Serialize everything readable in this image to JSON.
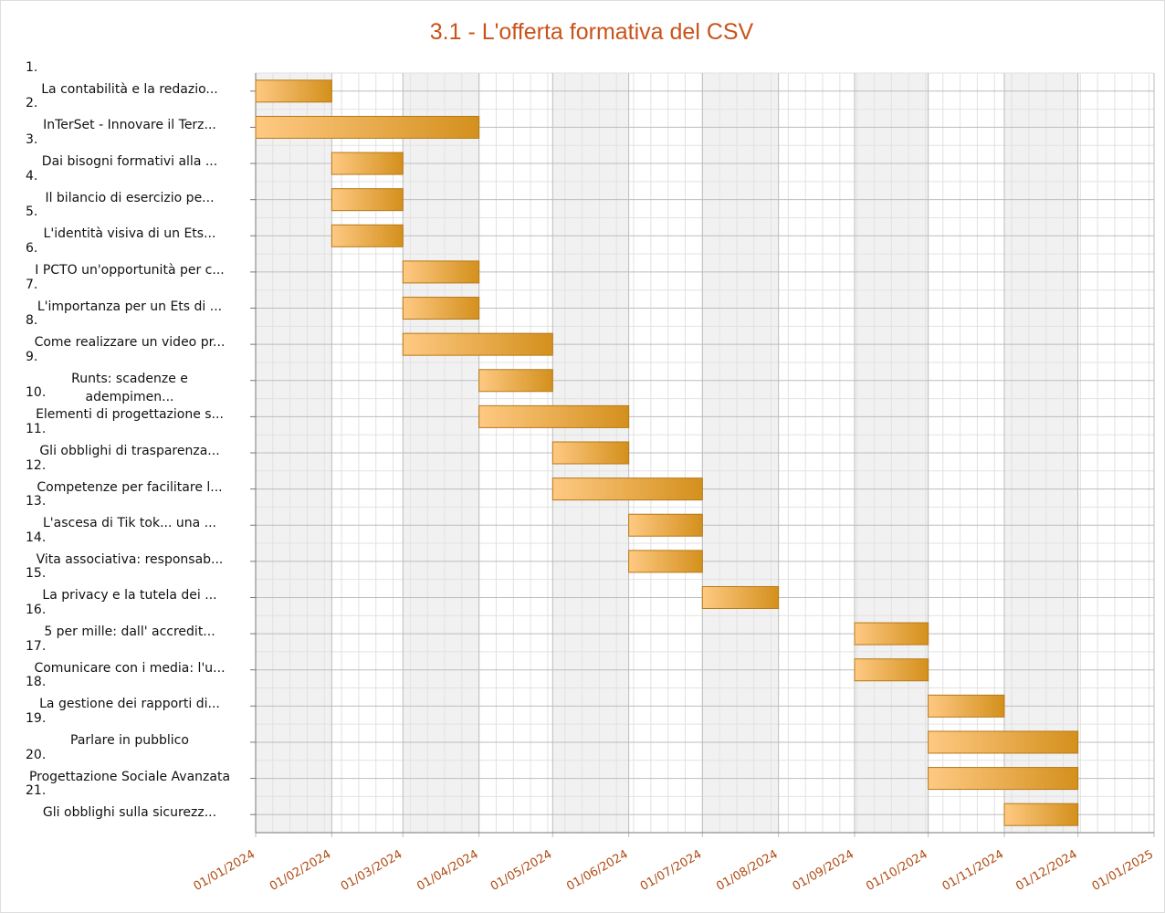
{
  "chart_data": {
    "type": "gantt",
    "title": "3.1 - L'offerta formativa del CSV",
    "row_numbers": [
      "1.",
      "2.",
      "3.",
      "4.",
      "5.",
      "6.",
      "7.",
      "8.",
      "9.",
      "10.",
      "11.",
      "12.",
      "13.",
      "14.",
      "15.",
      "16.",
      "17.",
      "18.",
      "19.",
      "20.",
      "21."
    ],
    "categories": [
      "La contabilità e la redazio...",
      "InTerSet - Innovare il Terz...",
      "Dai bisogni formativi alla ...",
      "Il bilancio di esercizio pe...",
      "L'identità visiva di un Ets...",
      "I PCTO un'opportunità per c...",
      "L'importanza per un Ets di ...",
      "Come realizzare un video pr...",
      "Runts: scadenze e adempimen...",
      "Elementi di progettazione s...",
      "Gli obblighi di trasparenza...",
      "Competenze per facilitare l...",
      "L'ascesa di Tik tok... una ...",
      "Vita associativa: responsab...",
      "La privacy e la tutela dei ...",
      "5 per mille: dall' accredit...",
      "Comunicare con i media: l'u...",
      "La gestione dei rapporti di...",
      "Parlare in pubblico",
      "Progettazione Sociale Avanzata",
      "Gli obblighi sulla sicurezz..."
    ],
    "start": [
      "01/01/2024",
      "01/01/2024",
      "01/02/2024",
      "01/02/2024",
      "01/02/2024",
      "01/03/2024",
      "01/03/2024",
      "01/03/2024",
      "01/04/2024",
      "01/04/2024",
      "01/05/2024",
      "01/05/2024",
      "01/06/2024",
      "01/06/2024",
      "01/07/2024",
      "01/09/2024",
      "01/09/2024",
      "01/10/2024",
      "01/10/2024",
      "01/10/2024",
      "01/11/2024"
    ],
    "end": [
      "01/02/2024",
      "01/04/2024",
      "01/03/2024",
      "01/03/2024",
      "01/03/2024",
      "01/04/2024",
      "01/04/2024",
      "01/05/2024",
      "01/05/2024",
      "01/06/2024",
      "01/06/2024",
      "01/07/2024",
      "01/07/2024",
      "01/07/2024",
      "01/08/2024",
      "01/10/2024",
      "01/10/2024",
      "01/11/2024",
      "01/12/2024",
      "01/12/2024",
      "01/12/2024"
    ],
    "color": "#d4901c",
    "xlim": [
      "01/01/2024",
      "01/01/2025"
    ],
    "xticks": [
      "01/01/2024",
      "01/02/2024",
      "01/03/2024",
      "01/04/2024",
      "01/05/2024",
      "01/06/2024",
      "01/07/2024",
      "01/08/2024",
      "01/09/2024",
      "01/10/2024",
      "01/11/2024",
      "01/12/2024",
      "01/01/2025"
    ],
    "grid": true
  }
}
